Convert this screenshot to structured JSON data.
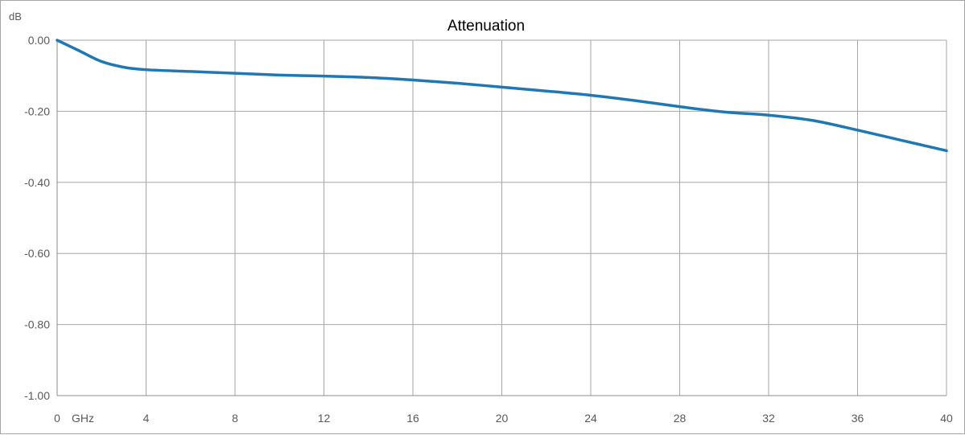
{
  "chart_data": {
    "type": "line",
    "title": "Attenuation",
    "ylabel": "dB",
    "xlabel": "GHz",
    "xlim": [
      0,
      40
    ],
    "ylim": [
      -1.0,
      0.0
    ],
    "x_ticks": [
      0,
      4,
      8,
      12,
      16,
      20,
      24,
      28,
      32,
      36,
      40
    ],
    "x_tick_labels": [
      "0",
      "4",
      "8",
      "12",
      "16",
      "20",
      "24",
      "28",
      "32",
      "36",
      "40"
    ],
    "y_ticks": [
      0.0,
      -0.2,
      -0.4,
      -0.6,
      -0.8,
      -1.0
    ],
    "y_tick_labels": [
      "0.00",
      "-0.20",
      "-0.40",
      "-0.60",
      "-0.80",
      "-1.00"
    ],
    "grid": true,
    "legend": "none",
    "series": [
      {
        "color": "#1f77b4",
        "x": [
          0,
          1,
          2,
          3,
          4,
          6,
          8,
          10,
          12,
          14,
          16,
          18,
          20,
          22,
          24,
          26,
          28,
          30,
          32,
          34,
          36,
          38,
          40
        ],
        "y": [
          0.0,
          -0.03,
          -0.06,
          -0.076,
          -0.083,
          -0.088,
          -0.093,
          -0.098,
          -0.101,
          -0.105,
          -0.112,
          -0.121,
          -0.132,
          -0.143,
          -0.155,
          -0.17,
          -0.187,
          -0.202,
          -0.211,
          -0.226,
          -0.253,
          -0.282,
          -0.311
        ]
      }
    ]
  }
}
